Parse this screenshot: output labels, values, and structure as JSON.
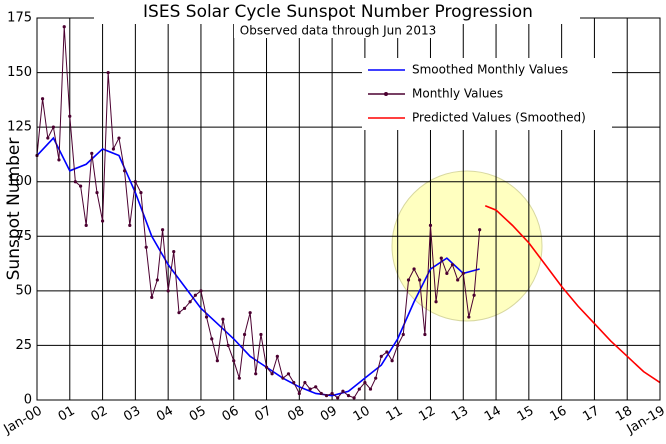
{
  "chart_data": {
    "type": "line",
    "title": "ISES Solar Cycle Sunspot Number Progression",
    "subtitle": "Observed data through Jun 2013",
    "y_label": "Sunspot Number",
    "xlim": [
      2000,
      2019
    ],
    "xticks": [
      {
        "value": 2000,
        "label": "Jan-00"
      },
      {
        "value": 2001,
        "label": "01"
      },
      {
        "value": 2002,
        "label": "02"
      },
      {
        "value": 2003,
        "label": "03"
      },
      {
        "value": 2004,
        "label": "04"
      },
      {
        "value": 2005,
        "label": "05"
      },
      {
        "value": 2006,
        "label": "06"
      },
      {
        "value": 2007,
        "label": "07"
      },
      {
        "value": 2008,
        "label": "08"
      },
      {
        "value": 2009,
        "label": "09"
      },
      {
        "value": 2010,
        "label": "10"
      },
      {
        "value": 2011,
        "label": "11"
      },
      {
        "value": 2012,
        "label": "12"
      },
      {
        "value": 2013,
        "label": "13"
      },
      {
        "value": 2014,
        "label": "14"
      },
      {
        "value": 2015,
        "label": "15"
      },
      {
        "value": 2016,
        "label": "16"
      },
      {
        "value": 2017,
        "label": "17"
      },
      {
        "value": 2018,
        "label": "18"
      },
      {
        "value": 2019,
        "label": "Jan-19"
      }
    ],
    "ylim": [
      0,
      175
    ],
    "yticks": [
      0,
      25,
      50,
      75,
      100,
      125,
      150,
      175
    ],
    "grid": true,
    "legend": "top-right",
    "series": [
      {
        "name": "Smoothed Monthly Values",
        "color": "#0000ff",
        "markers": false,
        "x": [
          2000.0,
          2000.5,
          2001.0,
          2001.5,
          2002.0,
          2002.5,
          2003.0,
          2003.5,
          2004.0,
          2004.5,
          2005.0,
          2005.5,
          2006.0,
          2006.5,
          2007.0,
          2007.5,
          2008.0,
          2008.5,
          2009.0,
          2009.5,
          2010.0,
          2010.5,
          2011.0,
          2011.5,
          2012.0,
          2012.5,
          2013.0,
          2013.5
        ],
        "values": [
          112,
          120,
          105,
          108,
          115,
          112,
          95,
          75,
          62,
          52,
          42,
          35,
          28,
          20,
          15,
          10,
          6,
          3,
          2,
          4,
          10,
          16,
          28,
          45,
          60,
          65,
          58,
          60
        ]
      },
      {
        "name": "Monthly Values",
        "color": "#4b0030",
        "markers": true,
        "x": [
          2000.0,
          2000.17,
          2000.33,
          2000.5,
          2000.67,
          2000.83,
          2001.0,
          2001.17,
          2001.33,
          2001.5,
          2001.67,
          2001.83,
          2002.0,
          2002.17,
          2002.33,
          2002.5,
          2002.67,
          2002.83,
          2003.0,
          2003.17,
          2003.33,
          2003.5,
          2003.67,
          2003.83,
          2004.0,
          2004.17,
          2004.33,
          2004.5,
          2004.67,
          2004.83,
          2005.0,
          2005.17,
          2005.33,
          2005.5,
          2005.67,
          2005.83,
          2006.0,
          2006.17,
          2006.33,
          2006.5,
          2006.67,
          2006.83,
          2007.0,
          2007.17,
          2007.33,
          2007.5,
          2007.67,
          2007.83,
          2008.0,
          2008.17,
          2008.33,
          2008.5,
          2008.67,
          2008.83,
          2009.0,
          2009.17,
          2009.33,
          2009.5,
          2009.67,
          2009.83,
          2010.0,
          2010.17,
          2010.33,
          2010.5,
          2010.67,
          2010.83,
          2011.0,
          2011.17,
          2011.33,
          2011.5,
          2011.67,
          2011.83,
          2012.0,
          2012.17,
          2012.33,
          2012.5,
          2012.67,
          2012.83,
          2013.0,
          2013.17,
          2013.33,
          2013.5
        ],
        "values": [
          112,
          138,
          120,
          125,
          110,
          171,
          130,
          100,
          98,
          80,
          113,
          95,
          82,
          150,
          115,
          120,
          105,
          80,
          100,
          95,
          70,
          47,
          55,
          78,
          50,
          68,
          40,
          42,
          45,
          48,
          50,
          38,
          28,
          18,
          37,
          25,
          18,
          10,
          30,
          40,
          12,
          30,
          15,
          12,
          20,
          10,
          12,
          8,
          3,
          8,
          5,
          6,
          3,
          2,
          3,
          1,
          4,
          2,
          1,
          5,
          8,
          5,
          10,
          20,
          22,
          18,
          25,
          30,
          55,
          60,
          55,
          30,
          80,
          45,
          65,
          58,
          62,
          55,
          58,
          38,
          48,
          78
        ]
      },
      {
        "name": "Predicted Values (Smoothed)",
        "color": "#ff0000",
        "markers": false,
        "x": [
          2013.67,
          2014.0,
          2014.5,
          2015.0,
          2015.5,
          2016.0,
          2016.5,
          2017.0,
          2017.5,
          2018.0,
          2018.5,
          2019.0
        ],
        "values": [
          89,
          87,
          80,
          72,
          62,
          52,
          43,
          35,
          27,
          20,
          13,
          8
        ]
      }
    ]
  }
}
